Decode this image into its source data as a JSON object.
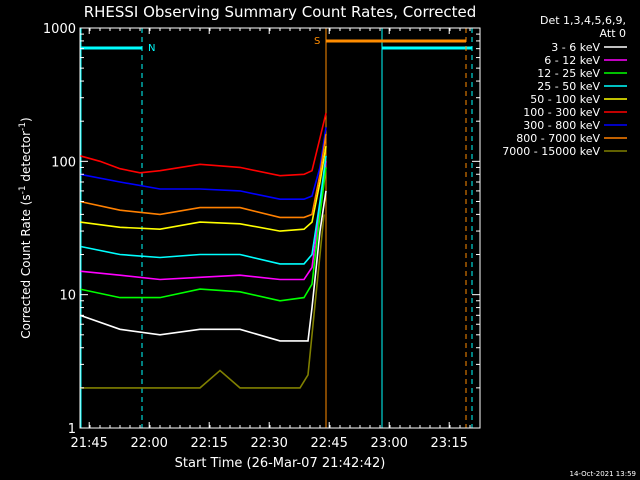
{
  "colors": {
    "background": "#000000",
    "axes": "#ffffff",
    "attenuator": "#00ffff",
    "saa": "#ff8c00"
  },
  "chart_data": {
    "type": "line",
    "title": "RHESSI Observing Summary Count Rates, Corrected",
    "xlabel": "Start Time (26-Mar-07 21:42:42)",
    "ylabel": "Corrected Count Rate (s^-1 detector^-1)",
    "ylabel_parts": {
      "main": "Corrected Count Rate (s",
      "sup1": "-1",
      "mid": " detector",
      "sup2": "-1",
      "end": ")"
    },
    "footer_date": "14-Oct-2021 13:59",
    "x_unit": "minutes since 21:42:42",
    "xlim": [
      0,
      100
    ],
    "ylim": [
      1,
      1000
    ],
    "log_y": true,
    "x_ticks": [
      {
        "label": "21:45",
        "x": 2.3
      },
      {
        "label": "22:00",
        "x": 17.3
      },
      {
        "label": "22:15",
        "x": 32.3
      },
      {
        "label": "22:30",
        "x": 47.3
      },
      {
        "label": "22:45",
        "x": 62.3
      },
      {
        "label": "23:00",
        "x": 77.3
      },
      {
        "label": "23:15",
        "x": 92.3
      }
    ],
    "y_ticks": [
      {
        "label": "1",
        "y": 1
      },
      {
        "label": "10",
        "y": 10
      },
      {
        "label": "100",
        "y": 100
      },
      {
        "label": "1000",
        "y": 1000
      }
    ],
    "legend": {
      "header": [
        "Det 1,3,4,5,6,9,",
        "Att 0"
      ],
      "placement": "right"
    },
    "series": [
      {
        "name": "3 - 6 keV",
        "color": "#ffffff",
        "x": [
          0,
          10,
          20,
          30,
          40,
          50,
          57,
          58,
          60,
          61.5
        ],
        "y": [
          7,
          5.5,
          5,
          5.5,
          5.5,
          4.5,
          4.5,
          8,
          30,
          60
        ]
      },
      {
        "name": "6 - 12 keV",
        "color": "#ff00ff",
        "x": [
          0,
          10,
          20,
          30,
          40,
          50,
          56,
          58,
          60,
          61.5
        ],
        "y": [
          15,
          14,
          13,
          13.5,
          14,
          13,
          13,
          16,
          45,
          100
        ]
      },
      {
        "name": "12 - 25 keV",
        "color": "#00ff00",
        "x": [
          0,
          10,
          20,
          30,
          40,
          50,
          56,
          58,
          60,
          61.5
        ],
        "y": [
          11,
          9.5,
          9.5,
          11,
          10.5,
          9,
          9.5,
          12,
          40,
          90
        ]
      },
      {
        "name": "25 - 50 keV",
        "color": "#00ffff",
        "x": [
          0,
          10,
          20,
          30,
          40,
          50,
          56,
          58,
          60,
          61.5
        ],
        "y": [
          23,
          20,
          19,
          20,
          20,
          17,
          17,
          20,
          50,
          110
        ]
      },
      {
        "name": "50 - 100 keV",
        "color": "#ffff00",
        "x": [
          0,
          10,
          20,
          30,
          40,
          50,
          56,
          58,
          60,
          61.5
        ],
        "y": [
          35,
          32,
          31,
          35,
          34,
          30,
          31,
          35,
          70,
          130
        ]
      },
      {
        "name": "100 - 300 keV",
        "color": "#ff0000",
        "x": [
          0,
          5,
          10,
          15,
          20,
          30,
          40,
          50,
          56,
          58,
          60,
          61.5
        ],
        "y": [
          110,
          100,
          88,
          82,
          85,
          95,
          90,
          78,
          80,
          85,
          150,
          230
        ]
      },
      {
        "name": "300 - 800 keV",
        "color": "#0000ff",
        "x": [
          0,
          10,
          20,
          30,
          40,
          50,
          56,
          58,
          60,
          61.5
        ],
        "y": [
          80,
          70,
          62,
          62,
          60,
          52,
          52,
          55,
          90,
          180
        ]
      },
      {
        "name": "800 - 7000 keV",
        "color": "#ff8000",
        "x": [
          0,
          10,
          20,
          30,
          40,
          50,
          56,
          58,
          60,
          61.5
        ],
        "y": [
          50,
          43,
          40,
          45,
          45,
          38,
          38,
          40,
          80,
          160
        ]
      },
      {
        "name": "7000 - 15000 keV",
        "color": "#808000",
        "x": [
          0,
          10,
          20,
          30,
          35,
          40,
          50,
          55,
          57,
          59,
          61
        ],
        "y": [
          2,
          2,
          2,
          2,
          2.7,
          2,
          2,
          2,
          2.5,
          10,
          40
        ]
      }
    ],
    "annotations": {
      "attenuator_label": "N",
      "saa_label": "S",
      "attenuator_periods": [
        [
          0,
          15.5
        ],
        [
          75.5,
          98
        ]
      ],
      "saa_period": [
        61.5,
        96.5
      ],
      "night_line_x": 15.5,
      "saa_end_x": 96.5
    }
  }
}
